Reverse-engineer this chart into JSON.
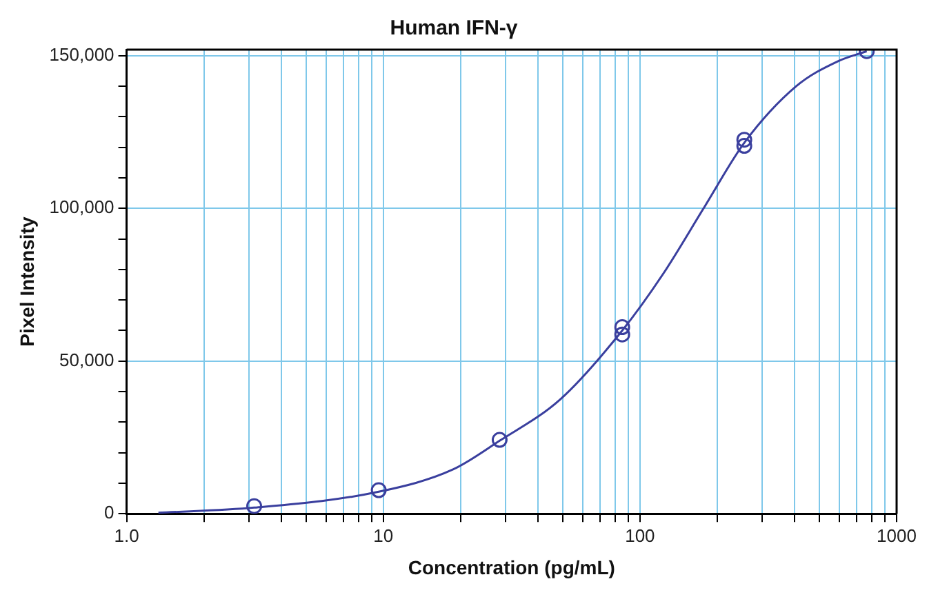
{
  "chart_data": {
    "type": "scatter",
    "title": "Human IFN-γ",
    "xlabel": "Concentration (pg/mL)",
    "ylabel": "Pixel Intensity",
    "series": [
      {
        "type": "scatter",
        "color": "#3a3f9e",
        "marker": "circle",
        "x": [
          3.14,
          9.6,
          28.4,
          85.3,
          85.3,
          255,
          255,
          765
        ],
        "values": [
          2500,
          7700,
          24200,
          61100,
          58700,
          122500,
          120500,
          151500
        ]
      },
      {
        "type": "line",
        "color": "#3a3f9e",
        "marker": "none",
        "line_style": "solid",
        "x": [
          1.33,
          3.14,
          9.6,
          18.7,
          28.4,
          49,
          85.3,
          123,
          179,
          255,
          406,
          587,
          765
        ],
        "values": [
          300,
          2000,
          7200,
          14500,
          23900,
          37500,
          60000,
          78500,
          100700,
          121500,
          140000,
          148100,
          151500
        ]
      }
    ],
    "log": "x",
    "xlim": [
      1,
      1000
    ],
    "xticks": [
      {
        "value": 1,
        "label": "1.0"
      },
      {
        "value": 2,
        "label": null
      },
      {
        "value": 3,
        "label": null
      },
      {
        "value": 4,
        "label": null
      },
      {
        "value": 5,
        "label": null
      },
      {
        "value": 6,
        "label": null
      },
      {
        "value": 7,
        "label": null
      },
      {
        "value": 8,
        "label": null
      },
      {
        "value": 9,
        "label": null
      },
      10,
      {
        "value": 20,
        "label": null
      },
      {
        "value": 30,
        "label": null
      },
      {
        "value": 40,
        "label": null
      },
      {
        "value": 50,
        "label": null
      },
      {
        "value": 60,
        "label": null
      },
      {
        "value": 70,
        "label": null
      },
      {
        "value": 80,
        "label": null
      },
      {
        "value": 90,
        "label": null
      },
      100,
      {
        "value": 200,
        "label": null
      },
      {
        "value": 300,
        "label": null
      },
      {
        "value": 400,
        "label": null
      },
      {
        "value": 500,
        "label": null
      },
      {
        "value": 600,
        "label": null
      },
      {
        "value": 700,
        "label": null
      },
      {
        "value": 800,
        "label": null
      },
      {
        "value": 900,
        "label": null
      },
      1000
    ],
    "ylim": [
      0,
      152000
    ],
    "yticks": [
      0,
      {
        "value": 10000,
        "label": null
      },
      {
        "value": 20000,
        "label": null
      },
      {
        "value": 30000,
        "label": null
      },
      {
        "value": 40000,
        "label": null
      },
      {
        "value": 50000,
        "label": "50,000"
      },
      {
        "value": 60000,
        "label": null
      },
      {
        "value": 70000,
        "label": null
      },
      {
        "value": 80000,
        "label": null
      },
      {
        "value": 90000,
        "label": null
      },
      {
        "value": 100000,
        "label": "100,000"
      },
      {
        "value": 110000,
        "label": null
      },
      {
        "value": 120000,
        "label": null
      },
      {
        "value": 130000,
        "label": null
      },
      {
        "value": 140000,
        "label": null
      },
      {
        "value": 150000,
        "label": "150,000"
      }
    ],
    "grid": true,
    "legend": false
  }
}
